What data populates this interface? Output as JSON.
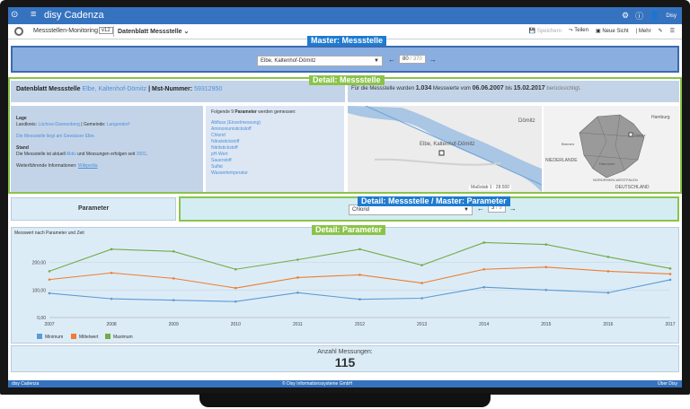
{
  "app": {
    "title": "disy Cadenza",
    "user": "Disy"
  },
  "toolbar": {
    "project": "Messstellen-Monitoring",
    "version": "v12",
    "dashboard": "Datenblatt Messstelle",
    "save": "Speichern",
    "share": "Teilen",
    "new_view": "Neue Sicht",
    "more": "Mehr"
  },
  "labels": {
    "master": "Master: Messstelle",
    "detail_station": "Detail: Messstelle",
    "detail_master": "Detail: Messstelle / Master: Parameter",
    "detail_param": "Detail: Parameter"
  },
  "master": {
    "selected": "Elbe, Kaltenhof-Dömitz",
    "page": "80",
    "total": "/ 370"
  },
  "datasheet": {
    "title_prefix": "Datenblatt Messstelle",
    "station": "Elbe, Kaltenhof-Dömitz",
    "nr_label": "| Mst-Nummer:",
    "nr": "59312950"
  },
  "summary": {
    "prefix": "Für die Messstelle wurden",
    "count": "1.034",
    "mid": "Messwerte vom",
    "from": "06.06.2007",
    "to_label": "bis",
    "to": "15.02.2017",
    "suffix": "berücksichtigt."
  },
  "lage": {
    "heading": "Lage",
    "land_label": "Landkreis:",
    "land": "Lüchow-Dannenberg",
    "gem_label": "| Gemeinde:",
    "gem": "Langendorf",
    "water": "Die Messstelle liegt am Gewässer Elbe.",
    "stand_heading": "Stand",
    "stand_a": "Die Messstelle ist aktuell",
    "stand_active": "Aktiv",
    "stand_b": "und Messungen erfolgen seit",
    "stand_year": "2001",
    "info_label": "Weiterführende Informationen:",
    "info_link": "Wikipedia"
  },
  "params": {
    "intro": "Folgende",
    "count": "9",
    "bold": "Parameter",
    "rest": "werden gemessen:",
    "items": [
      "Abfluss (Einzelmessung)",
      "Ammoniumstickstoff",
      "Chlorid",
      "Nitratstickstoff",
      "Nitritstickstoff",
      "pH-Wert",
      "Sauerstoff",
      "Sulfat",
      "Wassertemperatur"
    ]
  },
  "map": {
    "place": "Dömitz",
    "station": "Elbe, Kaltenhof-Dömitz",
    "scale_label": "Maßstab",
    "scale": "1 : 28.500",
    "overview": [
      "Hamburg",
      "NIEDERLANDE",
      "NORDRHEIN-WESTFALEN",
      "DEUTSCHLAND",
      "Dömitz",
      "Bremen",
      "Hannover"
    ]
  },
  "param_section": {
    "title": "Parameter",
    "selected": "Chlorid",
    "page": "3",
    "total": "/ 9"
  },
  "chart_data": {
    "type": "line",
    "title": "Messwert nach Parameter und Zeit",
    "categories": [
      "2007",
      "2008",
      "2009",
      "2010",
      "2011",
      "2012",
      "2013",
      "2014",
      "2015",
      "2016",
      "2017"
    ],
    "series": [
      {
        "name": "Minimum",
        "color": "#5a9bd5",
        "values": [
          88,
          68,
          63,
          58,
          90,
          66,
          70,
          110,
          100,
          90,
          137
        ]
      },
      {
        "name": "Mittelwert",
        "color": "#ed7d31",
        "values": [
          138,
          162,
          142,
          107,
          145,
          155,
          125,
          175,
          183,
          168,
          158
        ]
      },
      {
        "name": "Maximum",
        "color": "#70ad47",
        "values": [
          168,
          248,
          240,
          175,
          210,
          248,
          190,
          272,
          265,
          220,
          178
        ]
      }
    ],
    "yticks": [
      "0,00",
      "100,00",
      "200,00"
    ],
    "ylim": [
      0,
      280
    ]
  },
  "count": {
    "label": "Anzahl Messungen:",
    "value": "115"
  },
  "footer": {
    "left": "disy Cadenza",
    "center": "© Disy Informationssysteme GmbH",
    "right": "Über Disy"
  }
}
